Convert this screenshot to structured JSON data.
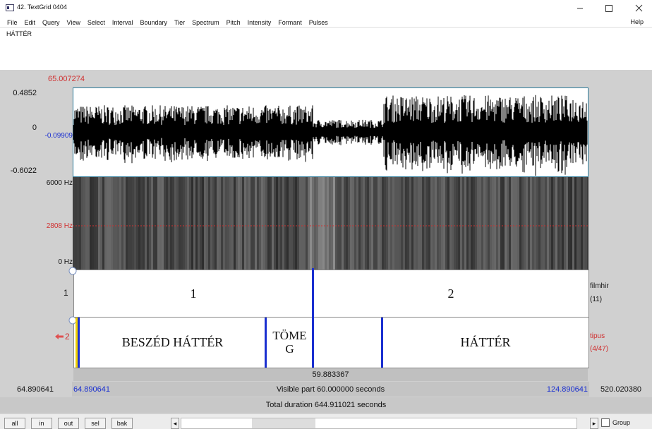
{
  "window": {
    "title": "42. TextGrid 0404",
    "menu": [
      "File",
      "Edit",
      "Query",
      "View",
      "Select",
      "Interval",
      "Boundary",
      "Tier",
      "Spectrum",
      "Pitch",
      "Intensity",
      "Formant",
      "Pulses"
    ],
    "help": "Help"
  },
  "text_field": "HÁTTÉR",
  "cursor_time": "65.007274",
  "waveform": {
    "labels": [
      "0.4852",
      "0",
      "-0.09909",
      "-0.6022"
    ]
  },
  "spectrogram": {
    "labels": [
      "6000 Hz",
      "2808 Hz",
      "0 Hz"
    ]
  },
  "tiers": [
    {
      "number": "1",
      "name": "filmhir",
      "count": "(11)",
      "intervals": [
        "1",
        "2"
      ]
    },
    {
      "number": "2",
      "name": "tipus",
      "count": "(4/47)",
      "intervals": [
        "BESZÉD HÁTTÉR",
        [
          "TÖME",
          "G"
        ],
        "HÁTTÉR"
      ]
    }
  ],
  "selection_duration": "59.883367",
  "time_row": {
    "left_outside": "64.890641",
    "visible_start": "64.890641",
    "visible_part": "Visible part 60.000000 seconds",
    "visible_end": "124.890641",
    "right_outside": "520.020380"
  },
  "total_duration": "Total duration 644.911021 seconds",
  "buttons": [
    "all",
    "in",
    "out",
    "sel",
    "bak"
  ],
  "group": "Group"
}
